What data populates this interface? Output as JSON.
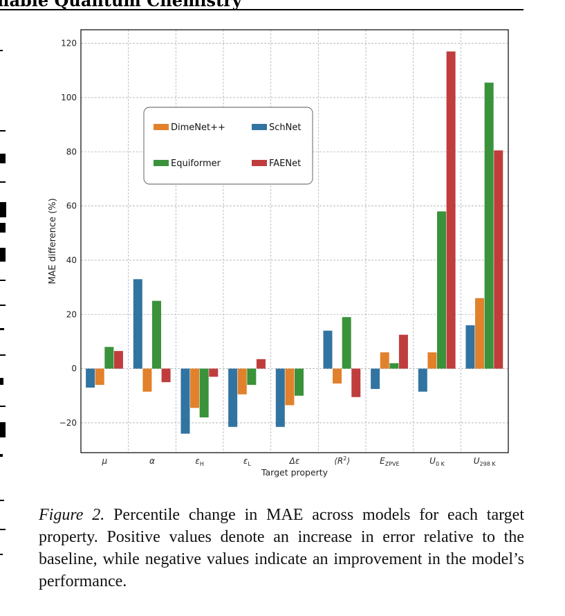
{
  "header": {
    "title": "nable Quantum Chemistry"
  },
  "caption": {
    "label": "Figure 2.",
    "text": " Percentile change in MAE across models for each target property.  Positive values denote an increase in error relative to the baseline, while negative values indicate an improvement in the model’s performance."
  },
  "chart_data": {
    "type": "bar",
    "title": "",
    "xlabel": "Target property",
    "ylabel": "MAE difference (%)",
    "ylim": [
      -31,
      125
    ],
    "yticks": [
      -20,
      0,
      20,
      40,
      60,
      80,
      100,
      120
    ],
    "ytick_labels": [
      "−20",
      "0",
      "20",
      "40",
      "60",
      "80",
      "100",
      "120"
    ],
    "grid": true,
    "legend_position": "upper-left",
    "categories": [
      {
        "base": "μ",
        "sub": "",
        "sup": ""
      },
      {
        "base": "α",
        "sub": "",
        "sup": ""
      },
      {
        "base": "ε",
        "sub": "H",
        "sup": ""
      },
      {
        "base": "ε",
        "sub": "L",
        "sup": ""
      },
      {
        "base": "Δε",
        "sub": "",
        "sup": ""
      },
      {
        "base": "⟨R",
        "sub": "",
        "sup": "2",
        "tail": "⟩"
      },
      {
        "base": "E",
        "sub": "ZPVE",
        "sup": ""
      },
      {
        "base": "U",
        "sub": "0 K",
        "sup": ""
      },
      {
        "base": "U",
        "sub": "298 K",
        "sup": ""
      }
    ],
    "series": [
      {
        "name": "SchNet",
        "color": "#3274a1",
        "values": [
          -7,
          33,
          -24,
          -21.5,
          -21.5,
          14,
          -7.5,
          -8.5,
          16
        ]
      },
      {
        "name": "DimeNet++",
        "color": "#e1812c",
        "values": [
          -6,
          -8.5,
          -14.5,
          -9.5,
          -13.5,
          -5.5,
          6,
          6,
          26
        ]
      },
      {
        "name": "Equiformer",
        "color": "#3a923a",
        "values": [
          8,
          25,
          -18,
          -6,
          -10,
          19,
          2,
          58,
          105.5
        ]
      },
      {
        "name": "FAENet",
        "color": "#c03d3e",
        "values": [
          6.5,
          -5,
          -3,
          3.5,
          0,
          -10.5,
          12.5,
          117,
          80.5
        ]
      }
    ],
    "legend_order": [
      "DimeNet++",
      "SchNet",
      "Equiformer",
      "FAENet"
    ]
  }
}
